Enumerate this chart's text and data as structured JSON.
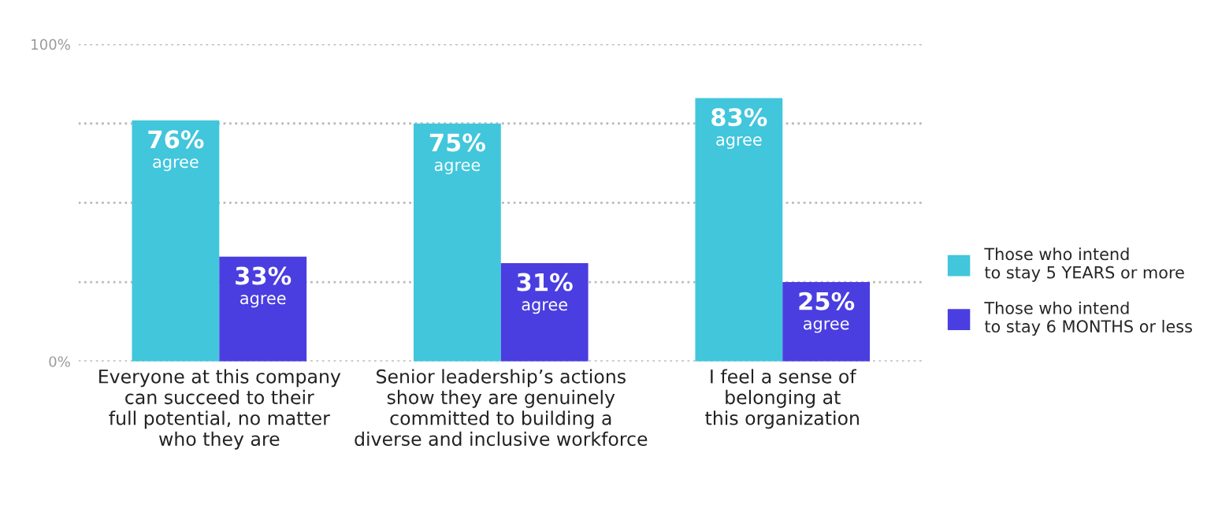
{
  "chart_data": {
    "type": "bar",
    "categories": [
      "Everyone at this company\ncan succeed to their\nfull potential, no matter\nwho they are",
      "Senior leadership’s actions\nshow they are genuinely\ncommitted to building a\ndiverse and inclusive workforce",
      "I feel a sense of\nbelonging at\nthis organization"
    ],
    "series": [
      {
        "name": "Those who intend\nto stay 5 YEARS or more",
        "color": "#41c6dc",
        "values": [
          76,
          75,
          83
        ],
        "value_labels": [
          "76%\nagree",
          "75%\nagree",
          "83%\nagree"
        ]
      },
      {
        "name": "Those who intend\nto stay 6 MONTHS or less",
        "color": "#4a3ee0",
        "values": [
          33,
          31,
          25
        ],
        "value_labels": [
          "33%\nagree",
          "31%\nagree",
          "25%\nagree"
        ]
      }
    ],
    "ylim": [
      0,
      100
    ],
    "yticks": [
      {
        "value": 0,
        "label": "0%"
      },
      {
        "value": 25,
        "label": null
      },
      {
        "value": 50,
        "label": null
      },
      {
        "value": 75,
        "label": null
      },
      {
        "value": 100,
        "label": "100%"
      }
    ],
    "grid": "y",
    "line_style": "dotted",
    "legend": "right"
  }
}
